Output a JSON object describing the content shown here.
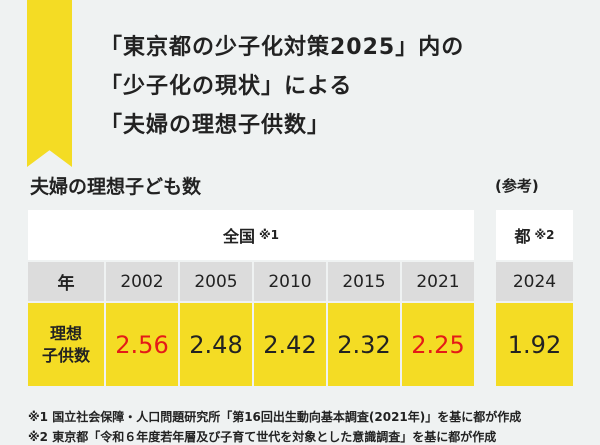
{
  "title": {
    "lines": [
      "「東京都の少子化対策2025」内の",
      "「少子化の現状」による",
      "「夫婦の理想子供数」"
    ]
  },
  "subtitle": "夫婦の理想子ども数",
  "reference_label": "(参考)",
  "national": {
    "header": "全国",
    "header_note": "※1",
    "row_year_label": "年",
    "row_value_label_1": "理想",
    "row_value_label_2": "子供数",
    "years": [
      "2002",
      "2005",
      "2010",
      "2015",
      "2021"
    ],
    "values": [
      "2.56",
      "2.48",
      "2.42",
      "2.32",
      "2.25"
    ],
    "highlight_red": [
      true,
      false,
      false,
      false,
      true
    ]
  },
  "tokyo": {
    "header": "都",
    "header_note": "※2",
    "year": "2024",
    "value": "1.92"
  },
  "colors": {
    "accent_yellow": "#f4dc24",
    "highlight_red": "#e41b17",
    "background": "#eff2f2"
  },
  "footnotes": [
    "※1 国立社会保障・人口問題研究所「第16回出生動向基本調査(2021年)」を基に都が作成",
    "※2 東京都「令和６年度若年層及び子育て世代を対象とした意識調査」を基に都が作成"
  ]
}
